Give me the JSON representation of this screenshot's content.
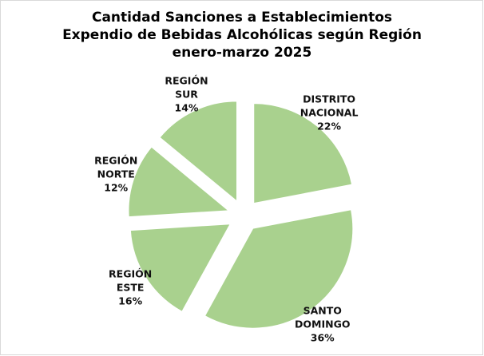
{
  "chart_data": {
    "type": "pie",
    "title": [
      "Cantidad Sanciones a Establecimientos",
      "Expendio de Bebidas Alcohólicas según Región",
      "enero-marzo 2025"
    ],
    "categories": [
      "DISTRITO NACIONAL",
      "SANTO DOMINGO",
      "REGIÓN ESTE",
      "REGIÓN NORTE",
      "REGIÓN SUR"
    ],
    "values": [
      22,
      36,
      16,
      12,
      14
    ],
    "value_labels": [
      "22%",
      "36%",
      "16%",
      "12%",
      "14%"
    ],
    "color": "#a9d18e"
  }
}
